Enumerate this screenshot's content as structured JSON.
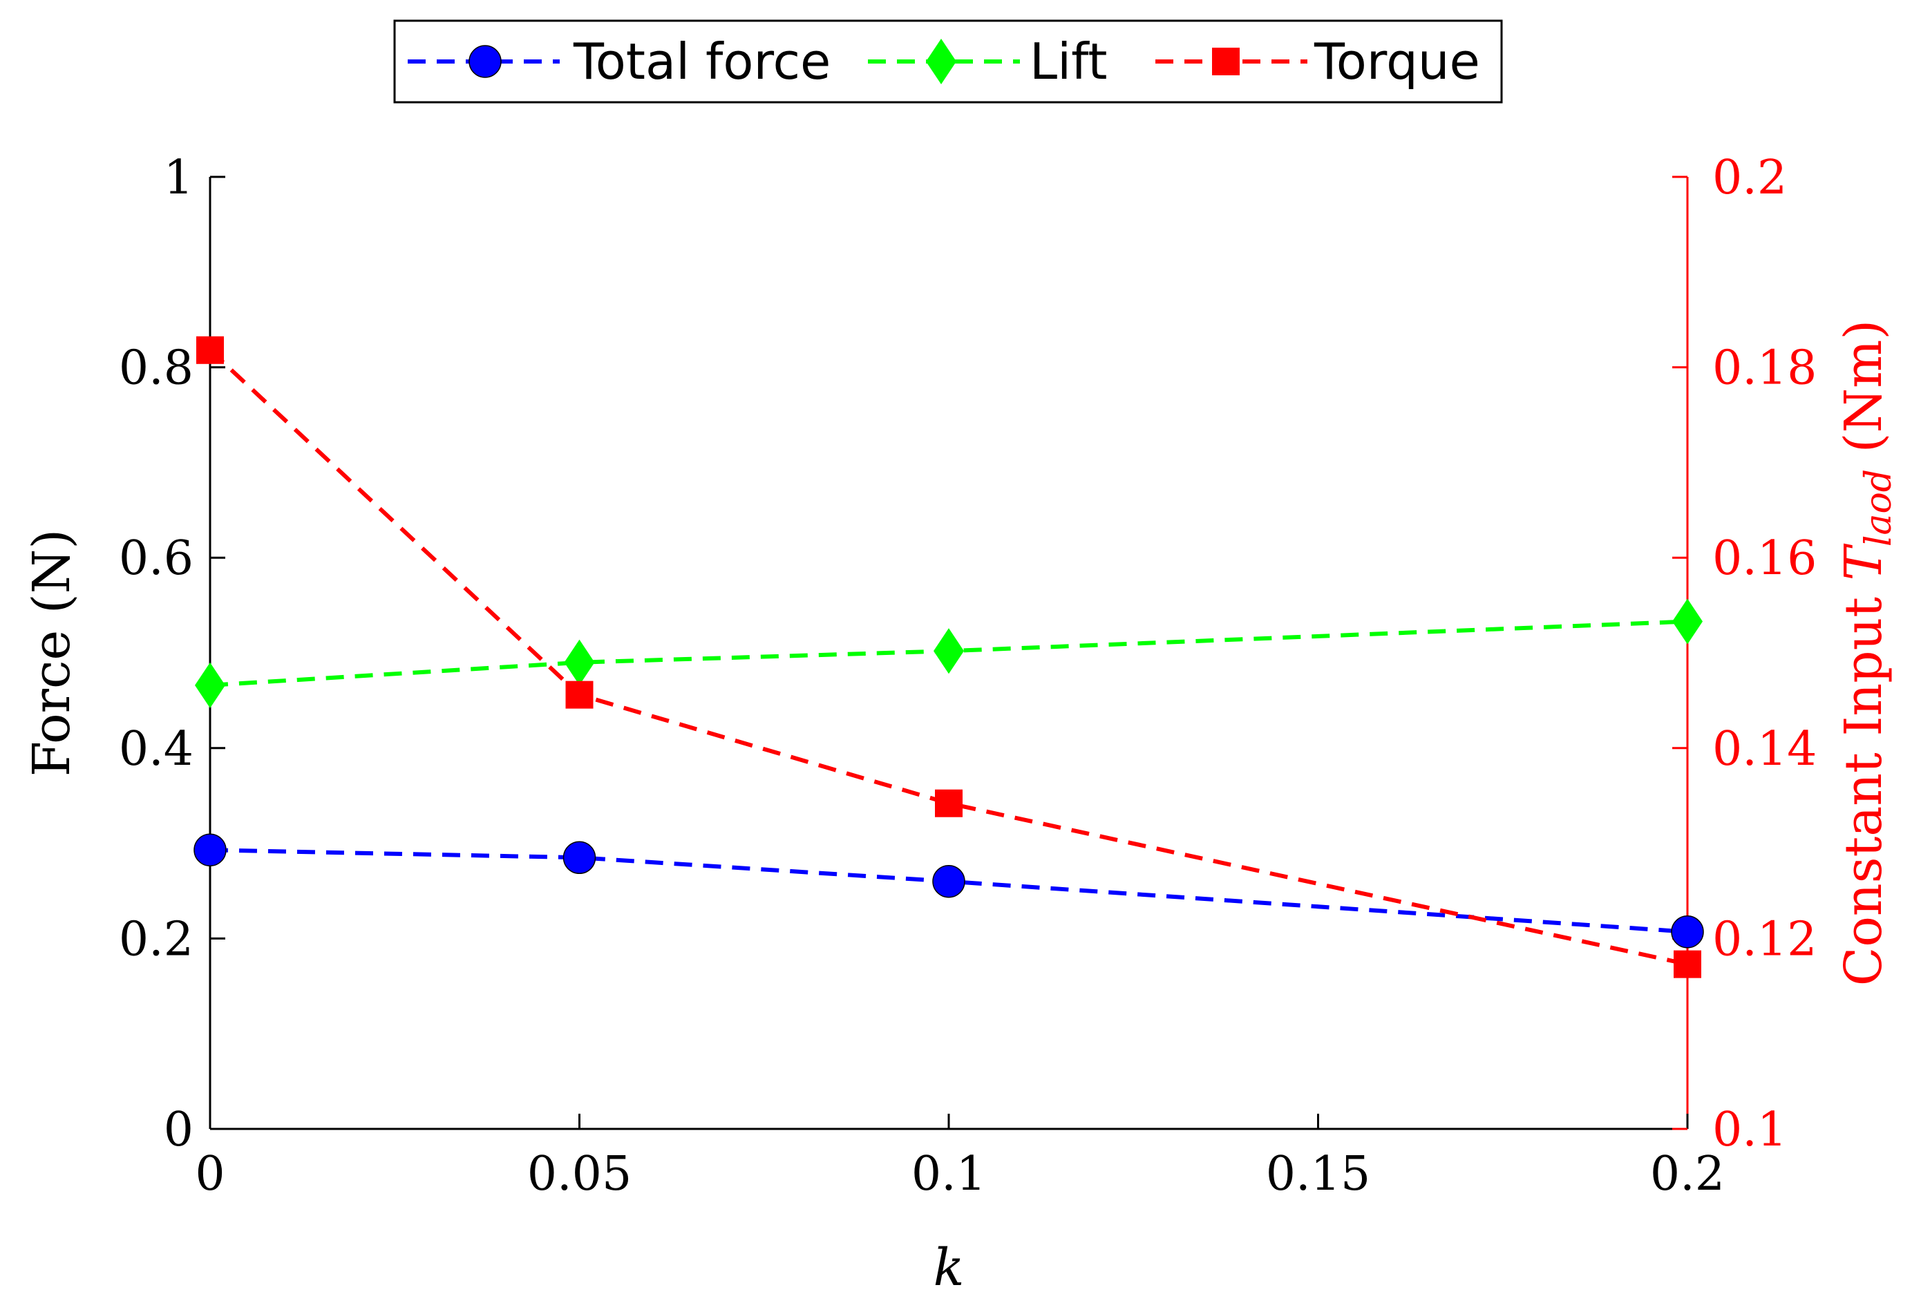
{
  "chart_data": {
    "type": "line",
    "x": [
      0,
      0.05,
      0.1,
      0.2
    ],
    "xlabel": "k",
    "xlim": [
      0,
      0.2
    ],
    "xticks": [
      0,
      0.05,
      0.1,
      0.15,
      0.2
    ],
    "xtick_labels": [
      "0",
      "0.05",
      "0.1",
      "0.15",
      "0.2"
    ],
    "ylabel_left": "Force (N)",
    "ylim_left": [
      0,
      1
    ],
    "yticks_left": [
      0,
      0.2,
      0.4,
      0.6,
      0.8,
      1
    ],
    "ytick_labels_left": [
      "0",
      "0.2",
      "0.4",
      "0.6",
      "0.8",
      "1"
    ],
    "ylabel_right": {
      "prefix": "Constant Input ",
      "symbol": "T",
      "subscript": "laod",
      "suffix": " (Nm)"
    },
    "ylim_right": [
      0.1,
      0.2
    ],
    "yticks_right": [
      0.1,
      0.12,
      0.14,
      0.16,
      0.18,
      0.2
    ],
    "ytick_labels_right": [
      "0.1",
      "0.12",
      "0.14",
      "0.16",
      "0.18",
      "0.2"
    ],
    "legend_position": "top-center outside",
    "series": [
      {
        "name": "Total force",
        "axis": "left",
        "color": "#0000ff",
        "marker": "circle",
        "values": [
          0.293,
          0.285,
          0.26,
          0.207
        ]
      },
      {
        "name": "Lift",
        "axis": "left",
        "color": "#00ff00",
        "marker": "diamond",
        "values": [
          0.466,
          0.49,
          0.502,
          0.533
        ]
      },
      {
        "name": "Torque",
        "axis": "right",
        "color": "#ff0000",
        "marker": "square",
        "values": [
          0.1818,
          0.1456,
          0.1342,
          0.1173
        ]
      }
    ]
  }
}
